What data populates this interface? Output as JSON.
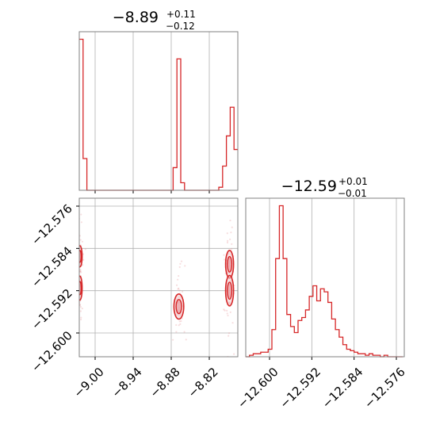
{
  "colors": {
    "hist": "#d62728",
    "contour": "#d62728",
    "contour_fill": "#f3c9cc",
    "scatter": "#e8a0a4",
    "grid": "#b0b0b0",
    "frame": "#808080"
  },
  "chart_data": [
    {
      "type": "histogram",
      "panel": "x-marginal",
      "title": {
        "main": "−8.89",
        "sup": "+0.11",
        "sub": "−0.12"
      },
      "xlim": [
        -9.025,
        -8.775
      ],
      "ylim": [
        0,
        1.05
      ],
      "xticks": [
        -9.0,
        -8.94,
        -8.88,
        -8.82
      ],
      "y_axis_labels_shown": false,
      "grid": true,
      "bins": [
        {
          "x0": -9.025,
          "x1": -9.019,
          "h": 1.0
        },
        {
          "x0": -9.019,
          "x1": -9.013,
          "h": 0.21
        },
        {
          "x0": -9.013,
          "x1": -8.877,
          "h": 0.0
        },
        {
          "x0": -8.877,
          "x1": -8.871,
          "h": 0.15
        },
        {
          "x0": -8.871,
          "x1": -8.865,
          "h": 0.87
        },
        {
          "x0": -8.865,
          "x1": -8.859,
          "h": 0.05
        },
        {
          "x0": -8.859,
          "x1": -8.805,
          "h": 0.0
        },
        {
          "x0": -8.805,
          "x1": -8.799,
          "h": 0.02
        },
        {
          "x0": -8.799,
          "x1": -8.793,
          "h": 0.16
        },
        {
          "x0": -8.793,
          "x1": -8.787,
          "h": 0.36
        },
        {
          "x0": -8.787,
          "x1": -8.781,
          "h": 0.55
        },
        {
          "x0": -8.781,
          "x1": -8.775,
          "h": 0.27
        }
      ]
    },
    {
      "type": "histogram",
      "panel": "y-marginal",
      "title": {
        "main": "−12.59",
        "sup": "+0.01",
        "sub": "−0.01"
      },
      "xlim": [
        -12.6045,
        -12.5745
      ],
      "ylim": [
        0,
        1.05
      ],
      "xticks": [
        -12.6,
        -12.592,
        -12.584,
        -12.576
      ],
      "y_axis_labels_shown": false,
      "grid": true,
      "values_start": -12.6045,
      "bin_width": 0.000707,
      "values": [
        0.0,
        0.01,
        0.02,
        0.02,
        0.03,
        0.03,
        0.05,
        0.18,
        0.65,
        1.0,
        0.65,
        0.28,
        0.2,
        0.16,
        0.24,
        0.26,
        0.31,
        0.4,
        0.47,
        0.37,
        0.45,
        0.43,
        0.36,
        0.25,
        0.18,
        0.13,
        0.08,
        0.05,
        0.04,
        0.03,
        0.02,
        0.02,
        0.01,
        0.02,
        0.01,
        0.01,
        0.0,
        0.01,
        0.0,
        0.0,
        0.0,
        0.0
      ]
    },
    {
      "type": "contour",
      "panel": "joint",
      "xlim": [
        -9.025,
        -8.775
      ],
      "ylim": [
        -12.6045,
        -12.5745
      ],
      "xticks": [
        -9.0,
        -8.94,
        -8.88,
        -8.82
      ],
      "yticks": [
        -12.576,
        -12.584,
        -12.592,
        -12.6
      ],
      "grid": true,
      "modes": [
        {
          "x": -9.024,
          "y": -12.5855,
          "sx": 0.0028,
          "sy": 0.0016
        },
        {
          "x": -9.024,
          "y": -12.5915,
          "sx": 0.0028,
          "sy": 0.0018
        },
        {
          "x": -8.868,
          "y": -12.595,
          "sx": 0.0062,
          "sy": 0.0019
        },
        {
          "x": -8.788,
          "y": -12.587,
          "sx": 0.005,
          "sy": 0.0021
        },
        {
          "x": -8.788,
          "y": -12.592,
          "sx": 0.005,
          "sy": 0.0023
        }
      ]
    }
  ]
}
